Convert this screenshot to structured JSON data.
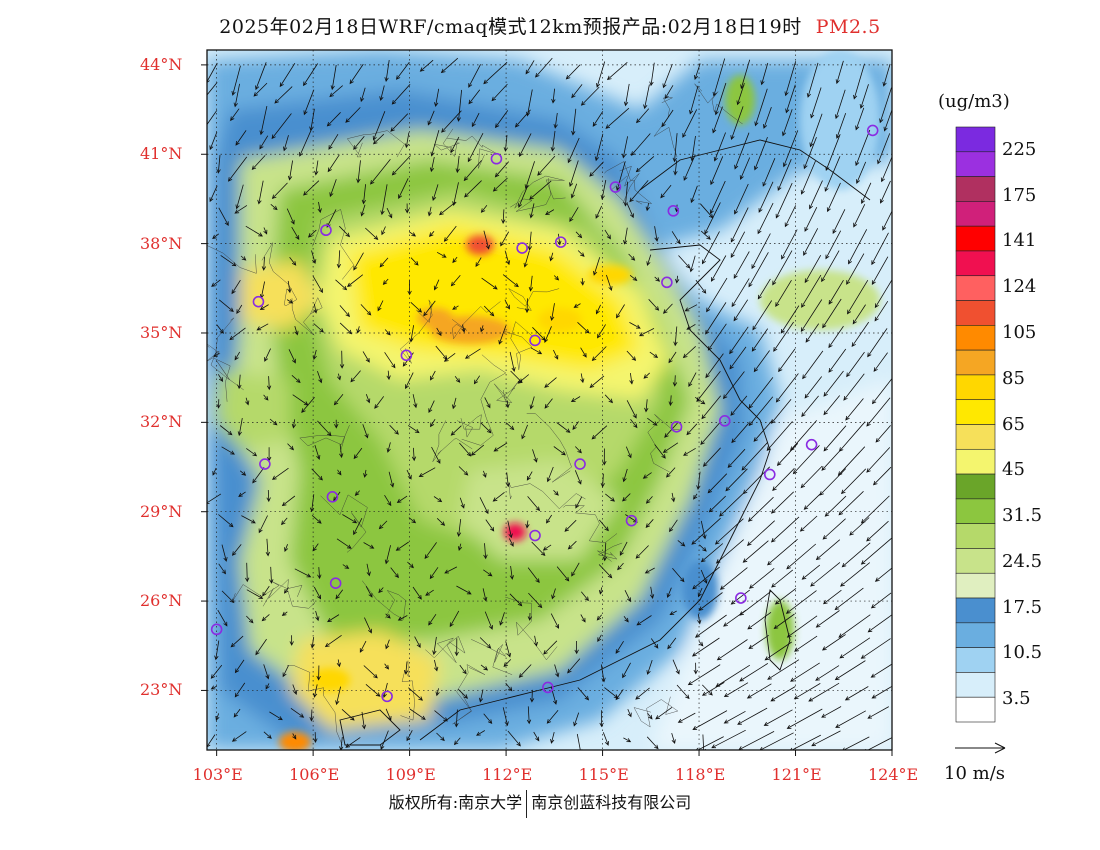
{
  "title": {
    "main": "2025年02月18日WRF/cmaq模式12km预报产品:02月18日19时",
    "pollutant": "PM2.5"
  },
  "map": {
    "lat_ticks": [
      "44°N",
      "41°N",
      "38°N",
      "35°N",
      "32°N",
      "29°N",
      "26°N",
      "23°N"
    ],
    "lon_ticks": [
      "103°E",
      "106°E",
      "109°E",
      "112°E",
      "115°E",
      "118°E",
      "121°E",
      "124°E"
    ],
    "extent": {
      "lon_min": 102.7,
      "lon_max": 124.0,
      "lat_min": 21.0,
      "lat_max": 44.5
    },
    "station_color": "#8a2be2",
    "stations": [
      {
        "lon": 103.0,
        "lat": 25.05
      },
      {
        "lon": 104.3,
        "lat": 36.05
      },
      {
        "lon": 104.5,
        "lat": 30.6
      },
      {
        "lon": 106.4,
        "lat": 38.45
      },
      {
        "lon": 106.6,
        "lat": 29.5
      },
      {
        "lon": 106.7,
        "lat": 26.6
      },
      {
        "lon": 108.3,
        "lat": 22.8
      },
      {
        "lon": 108.9,
        "lat": 34.25
      },
      {
        "lon": 111.7,
        "lat": 40.85
      },
      {
        "lon": 112.5,
        "lat": 37.85
      },
      {
        "lon": 113.7,
        "lat": 38.05
      },
      {
        "lon": 112.9,
        "lat": 34.75
      },
      {
        "lon": 112.9,
        "lat": 28.2
      },
      {
        "lon": 114.3,
        "lat": 30.6
      },
      {
        "lon": 115.4,
        "lat": 39.9
      },
      {
        "lon": 115.9,
        "lat": 28.7
      },
      {
        "lon": 117.0,
        "lat": 36.7
      },
      {
        "lon": 117.2,
        "lat": 39.1
      },
      {
        "lon": 117.3,
        "lat": 31.85
      },
      {
        "lon": 118.8,
        "lat": 32.05
      },
      {
        "lon": 120.2,
        "lat": 30.25
      },
      {
        "lon": 119.3,
        "lat": 26.1
      },
      {
        "lon": 121.5,
        "lat": 31.25
      },
      {
        "lon": 123.4,
        "lat": 41.8
      },
      {
        "lon": 113.3,
        "lat": 23.1
      }
    ]
  },
  "legend": {
    "unit": "(ug/m3)",
    "colors": [
      "#7b2ae0",
      "#9b30e0",
      "#b03060",
      "#d0207a",
      "#ff0000",
      "#f01050",
      "#ff6060",
      "#f05030",
      "#ff8a00",
      "#f5a623",
      "#ffd700",
      "#ffe800",
      "#f6e05a",
      "#f4f56e",
      "#6aa529",
      "#8cc63f",
      "#b5d96a",
      "#c8e38a",
      "#e0efc0",
      "#4a8fcf",
      "#6aaee0",
      "#9fd2f2",
      "#d7eefa",
      "#ffffff"
    ],
    "labels": [
      "225",
      "175",
      "141",
      "124",
      "105",
      "85",
      "65",
      "45",
      "31.5",
      "24.5",
      "17.5",
      "10.5",
      "3.5"
    ]
  },
  "wind_scale": {
    "label": "10 m/s"
  },
  "footer": {
    "left": "版权所有:南京大学",
    "right": "南京创蓝科技有限公司"
  }
}
